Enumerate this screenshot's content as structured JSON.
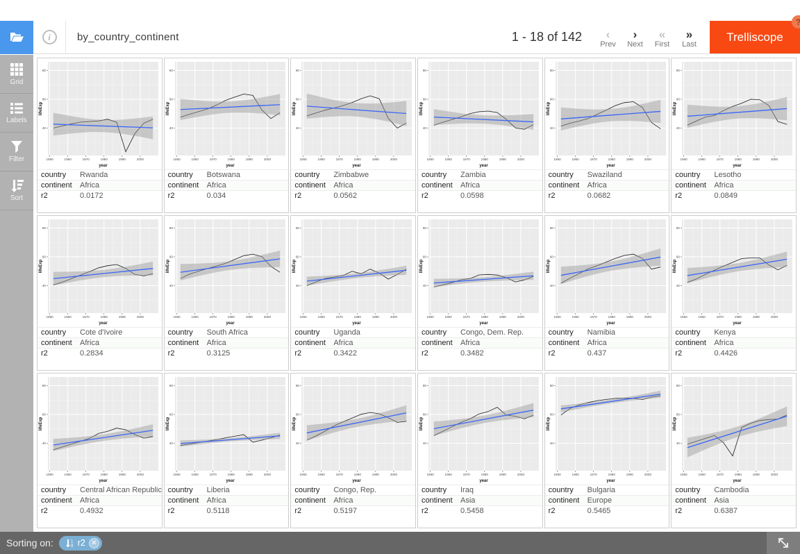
{
  "header": {
    "title": "by_country_continent",
    "pagination": {
      "range": "1 - 18 of 142",
      "prev_label": "Prev",
      "next_label": "Next",
      "first_label": "First",
      "last_label": "Last",
      "prev_icon": "chevron-left-icon",
      "next_icon": "chevron-right-icon",
      "first_icon": "double-chevron-left-icon",
      "last_icon": "double-chevron-right-icon",
      "prev_arrow": "‹",
      "next_arrow": "›",
      "first_arrow": "«",
      "last_arrow": "»",
      "prev_disabled": true,
      "first_disabled": true
    },
    "brand_button": "Trelliscope",
    "help_badge": "?",
    "info_icon": "i"
  },
  "sidebar": {
    "items": [
      {
        "label": "Grid",
        "icon": "grid-icon"
      },
      {
        "label": "Labels",
        "icon": "labels-icon"
      },
      {
        "label": "Filter",
        "icon": "filter-icon"
      },
      {
        "label": "Sort",
        "icon": "sort-icon"
      }
    ]
  },
  "footer": {
    "sorting_on_label": "Sorting on:",
    "sort_pill": {
      "field": "r2",
      "icon": "sort-numeric-asc-icon",
      "remove_icon": "close-icon"
    },
    "resize_icon": "resize-diagonal-icon"
  },
  "colors": {
    "accent_blue": "#4a97ee",
    "brand_orange": "#f84913",
    "sidebar_grey": "#b2b2b2",
    "footer_grey": "#666666",
    "pill_blue": "#7bb0d4",
    "plot_panel": "#ebebeb",
    "trend_blue": "#3a66f8",
    "band_grey": "#999999"
  },
  "label_keys": [
    "country",
    "continent",
    "r2"
  ],
  "panels": [
    {
      "country": "Rwanda",
      "continent": "Africa",
      "r2": "0.0172"
    },
    {
      "country": "Botswana",
      "continent": "Africa",
      "r2": "0.034"
    },
    {
      "country": "Zimbabwe",
      "continent": "Africa",
      "r2": "0.0562"
    },
    {
      "country": "Zambia",
      "continent": "Africa",
      "r2": "0.0598"
    },
    {
      "country": "Swaziland",
      "continent": "Africa",
      "r2": "0.0682"
    },
    {
      "country": "Lesotho",
      "continent": "Africa",
      "r2": "0.0849"
    },
    {
      "country": "Cote d'Ivoire",
      "continent": "Africa",
      "r2": "0.2834"
    },
    {
      "country": "South Africa",
      "continent": "Africa",
      "r2": "0.3125"
    },
    {
      "country": "Uganda",
      "continent": "Africa",
      "r2": "0.3422"
    },
    {
      "country": "Congo, Dem. Rep.",
      "continent": "Africa",
      "r2": "0.3482"
    },
    {
      "country": "Namibia",
      "continent": "Africa",
      "r2": "0.437"
    },
    {
      "country": "Kenya",
      "continent": "Africa",
      "r2": "0.4426"
    },
    {
      "country": "Central African Republic",
      "continent": "Africa",
      "r2": "0.4932"
    },
    {
      "country": "Liberia",
      "continent": "Africa",
      "r2": "0.5118"
    },
    {
      "country": "Congo, Rep.",
      "continent": "Africa",
      "r2": "0.5197"
    },
    {
      "country": "Iraq",
      "continent": "Asia",
      "r2": "0.5458"
    },
    {
      "country": "Bulgaria",
      "continent": "Europe",
      "r2": "0.5465"
    },
    {
      "country": "Cambodia",
      "continent": "Asia",
      "r2": "0.6387"
    }
  ],
  "chart_data": {
    "type": "line",
    "xlabel": "year",
    "ylabel": "lifeExp",
    "x": [
      1952,
      1957,
      1962,
      1967,
      1972,
      1977,
      1982,
      1987,
      1992,
      1997,
      2002,
      2007
    ],
    "xticks": [
      1950,
      1960,
      1970,
      1980,
      1990,
      2000
    ],
    "yticks": [
      40,
      60,
      80
    ],
    "xlim": [
      1949,
      2010
    ],
    "ylim": [
      21,
      86
    ],
    "grid": true,
    "overlay": "linear regression fit with 95% confidence band",
    "series": [
      {
        "name": "Rwanda",
        "values": [
          40.0,
          41.5,
          43.0,
          44.1,
          44.6,
          45.0,
          46.2,
          44.0,
          23.6,
          36.1,
          43.4,
          46.2
        ]
      },
      {
        "name": "Botswana",
        "values": [
          47.6,
          49.6,
          51.5,
          53.3,
          56.0,
          59.3,
          61.5,
          63.6,
          62.7,
          52.6,
          46.6,
          50.7
        ]
      },
      {
        "name": "Zimbabwe",
        "values": [
          48.5,
          50.5,
          52.4,
          54.0,
          55.6,
          57.7,
          60.4,
          62.4,
          60.4,
          46.8,
          40.0,
          43.5
        ]
      },
      {
        "name": "Zambia",
        "values": [
          42.0,
          44.1,
          46.0,
          47.8,
          50.1,
          51.4,
          51.8,
          50.8,
          46.1,
          40.2,
          39.2,
          42.4
        ]
      },
      {
        "name": "Swaziland",
        "values": [
          41.4,
          43.4,
          44.9,
          46.6,
          49.6,
          52.5,
          55.6,
          57.7,
          58.3,
          54.3,
          43.9,
          39.6
        ]
      },
      {
        "name": "Lesotho",
        "values": [
          42.1,
          45.0,
          47.7,
          48.7,
          52.2,
          55.1,
          57.2,
          60.0,
          59.7,
          55.6,
          44.6,
          42.6
        ]
      },
      {
        "name": "Cote d'Ivoire",
        "values": [
          40.5,
          42.5,
          44.9,
          47.4,
          49.8,
          52.4,
          53.9,
          54.7,
          52.0,
          47.8,
          46.8,
          48.3
        ]
      },
      {
        "name": "South Africa",
        "values": [
          45.0,
          48.0,
          50.0,
          51.9,
          53.7,
          55.5,
          58.2,
          60.8,
          61.9,
          60.2,
          53.4,
          49.3
        ]
      },
      {
        "name": "Uganda",
        "values": [
          40.0,
          42.6,
          45.0,
          46.0,
          47.0,
          50.0,
          48.3,
          51.5,
          48.8,
          44.6,
          47.8,
          51.5
        ]
      },
      {
        "name": "Congo, Dem. Rep.",
        "values": [
          39.1,
          40.6,
          42.1,
          44.1,
          45.0,
          47.5,
          47.8,
          47.4,
          45.6,
          42.6,
          44.0,
          46.5
        ]
      },
      {
        "name": "Namibia",
        "values": [
          41.7,
          45.2,
          48.4,
          51.6,
          53.9,
          56.4,
          58.9,
          61.0,
          61.9,
          58.9,
          51.5,
          52.9
        ]
      },
      {
        "name": "Kenya",
        "values": [
          42.3,
          44.7,
          47.9,
          50.7,
          53.6,
          56.2,
          58.8,
          59.3,
          59.3,
          54.4,
          51.0,
          54.1
        ]
      },
      {
        "name": "Central African Republic",
        "values": [
          35.5,
          37.5,
          39.5,
          41.4,
          43.5,
          46.8,
          48.3,
          50.5,
          49.4,
          46.1,
          43.6,
          44.7
        ]
      },
      {
        "name": "Liberia",
        "values": [
          38.5,
          39.5,
          40.5,
          41.5,
          42.6,
          43.8,
          44.9,
          46.0,
          40.8,
          42.2,
          43.8,
          45.7
        ]
      },
      {
        "name": "Congo, Rep.",
        "values": [
          42.1,
          45.1,
          48.4,
          52.0,
          54.9,
          57.5,
          60.1,
          61.4,
          60.5,
          57.8,
          54.5,
          55.3
        ]
      },
      {
        "name": "Iraq",
        "values": [
          45.3,
          48.4,
          51.5,
          54.5,
          57.0,
          60.4,
          62.0,
          65.0,
          59.5,
          58.8,
          57.0,
          59.5
        ]
      },
      {
        "name": "Bulgaria",
        "values": [
          59.6,
          64.2,
          66.6,
          68.3,
          69.6,
          70.4,
          71.1,
          71.3,
          71.2,
          70.3,
          72.1,
          73.0
        ]
      },
      {
        "name": "Cambodia",
        "values": [
          39.4,
          41.4,
          43.4,
          45.4,
          40.3,
          31.2,
          51.0,
          53.9,
          55.8,
          56.5,
          56.8,
          59.7
        ]
      }
    ]
  }
}
